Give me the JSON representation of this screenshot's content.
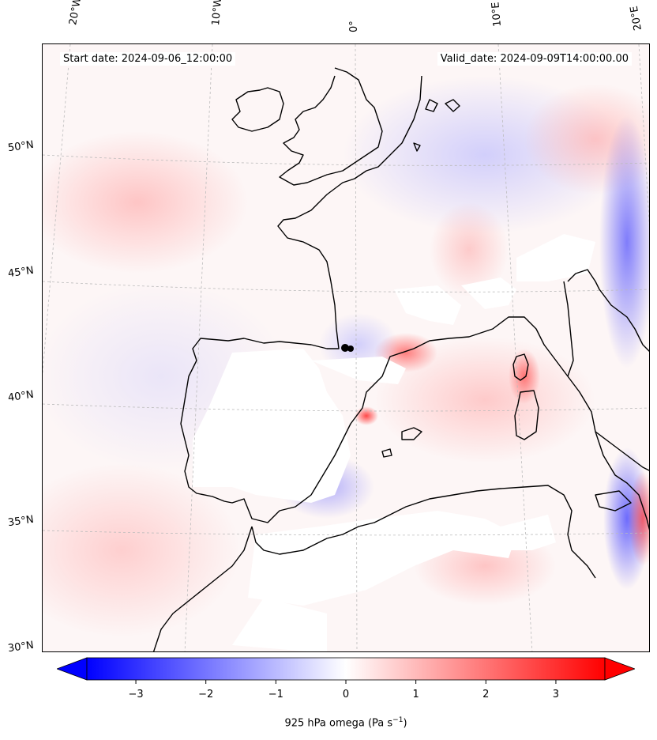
{
  "map": {
    "start_date": "Start date: 2024-09-06_12:00:00",
    "valid_date": "Valid_date: 2024-09-09T14:00:00.00",
    "lon_labels": [
      "20°W",
      "10°W",
      "0°",
      "10°E",
      "20°E"
    ],
    "lat_labels": [
      "50°N",
      "45°N",
      "40°N",
      "35°N",
      "30°N"
    ]
  },
  "colorbar": {
    "min": -3.7,
    "max": 3.7,
    "ticks": [
      "−3",
      "−2",
      "−1",
      "0",
      "1",
      "2",
      "3"
    ],
    "tick_values": [
      -3,
      -2,
      -1,
      0,
      1,
      2,
      3
    ],
    "label": "925 hPa omega (Pa s",
    "label_sup": "−1",
    "label_close": ")",
    "colors": {
      "low": "#0000ff",
      "mid": "#ffffff",
      "high": "#ff0000"
    }
  },
  "colors": {
    "coast": "#000000",
    "grid": "#bbbbbb"
  }
}
